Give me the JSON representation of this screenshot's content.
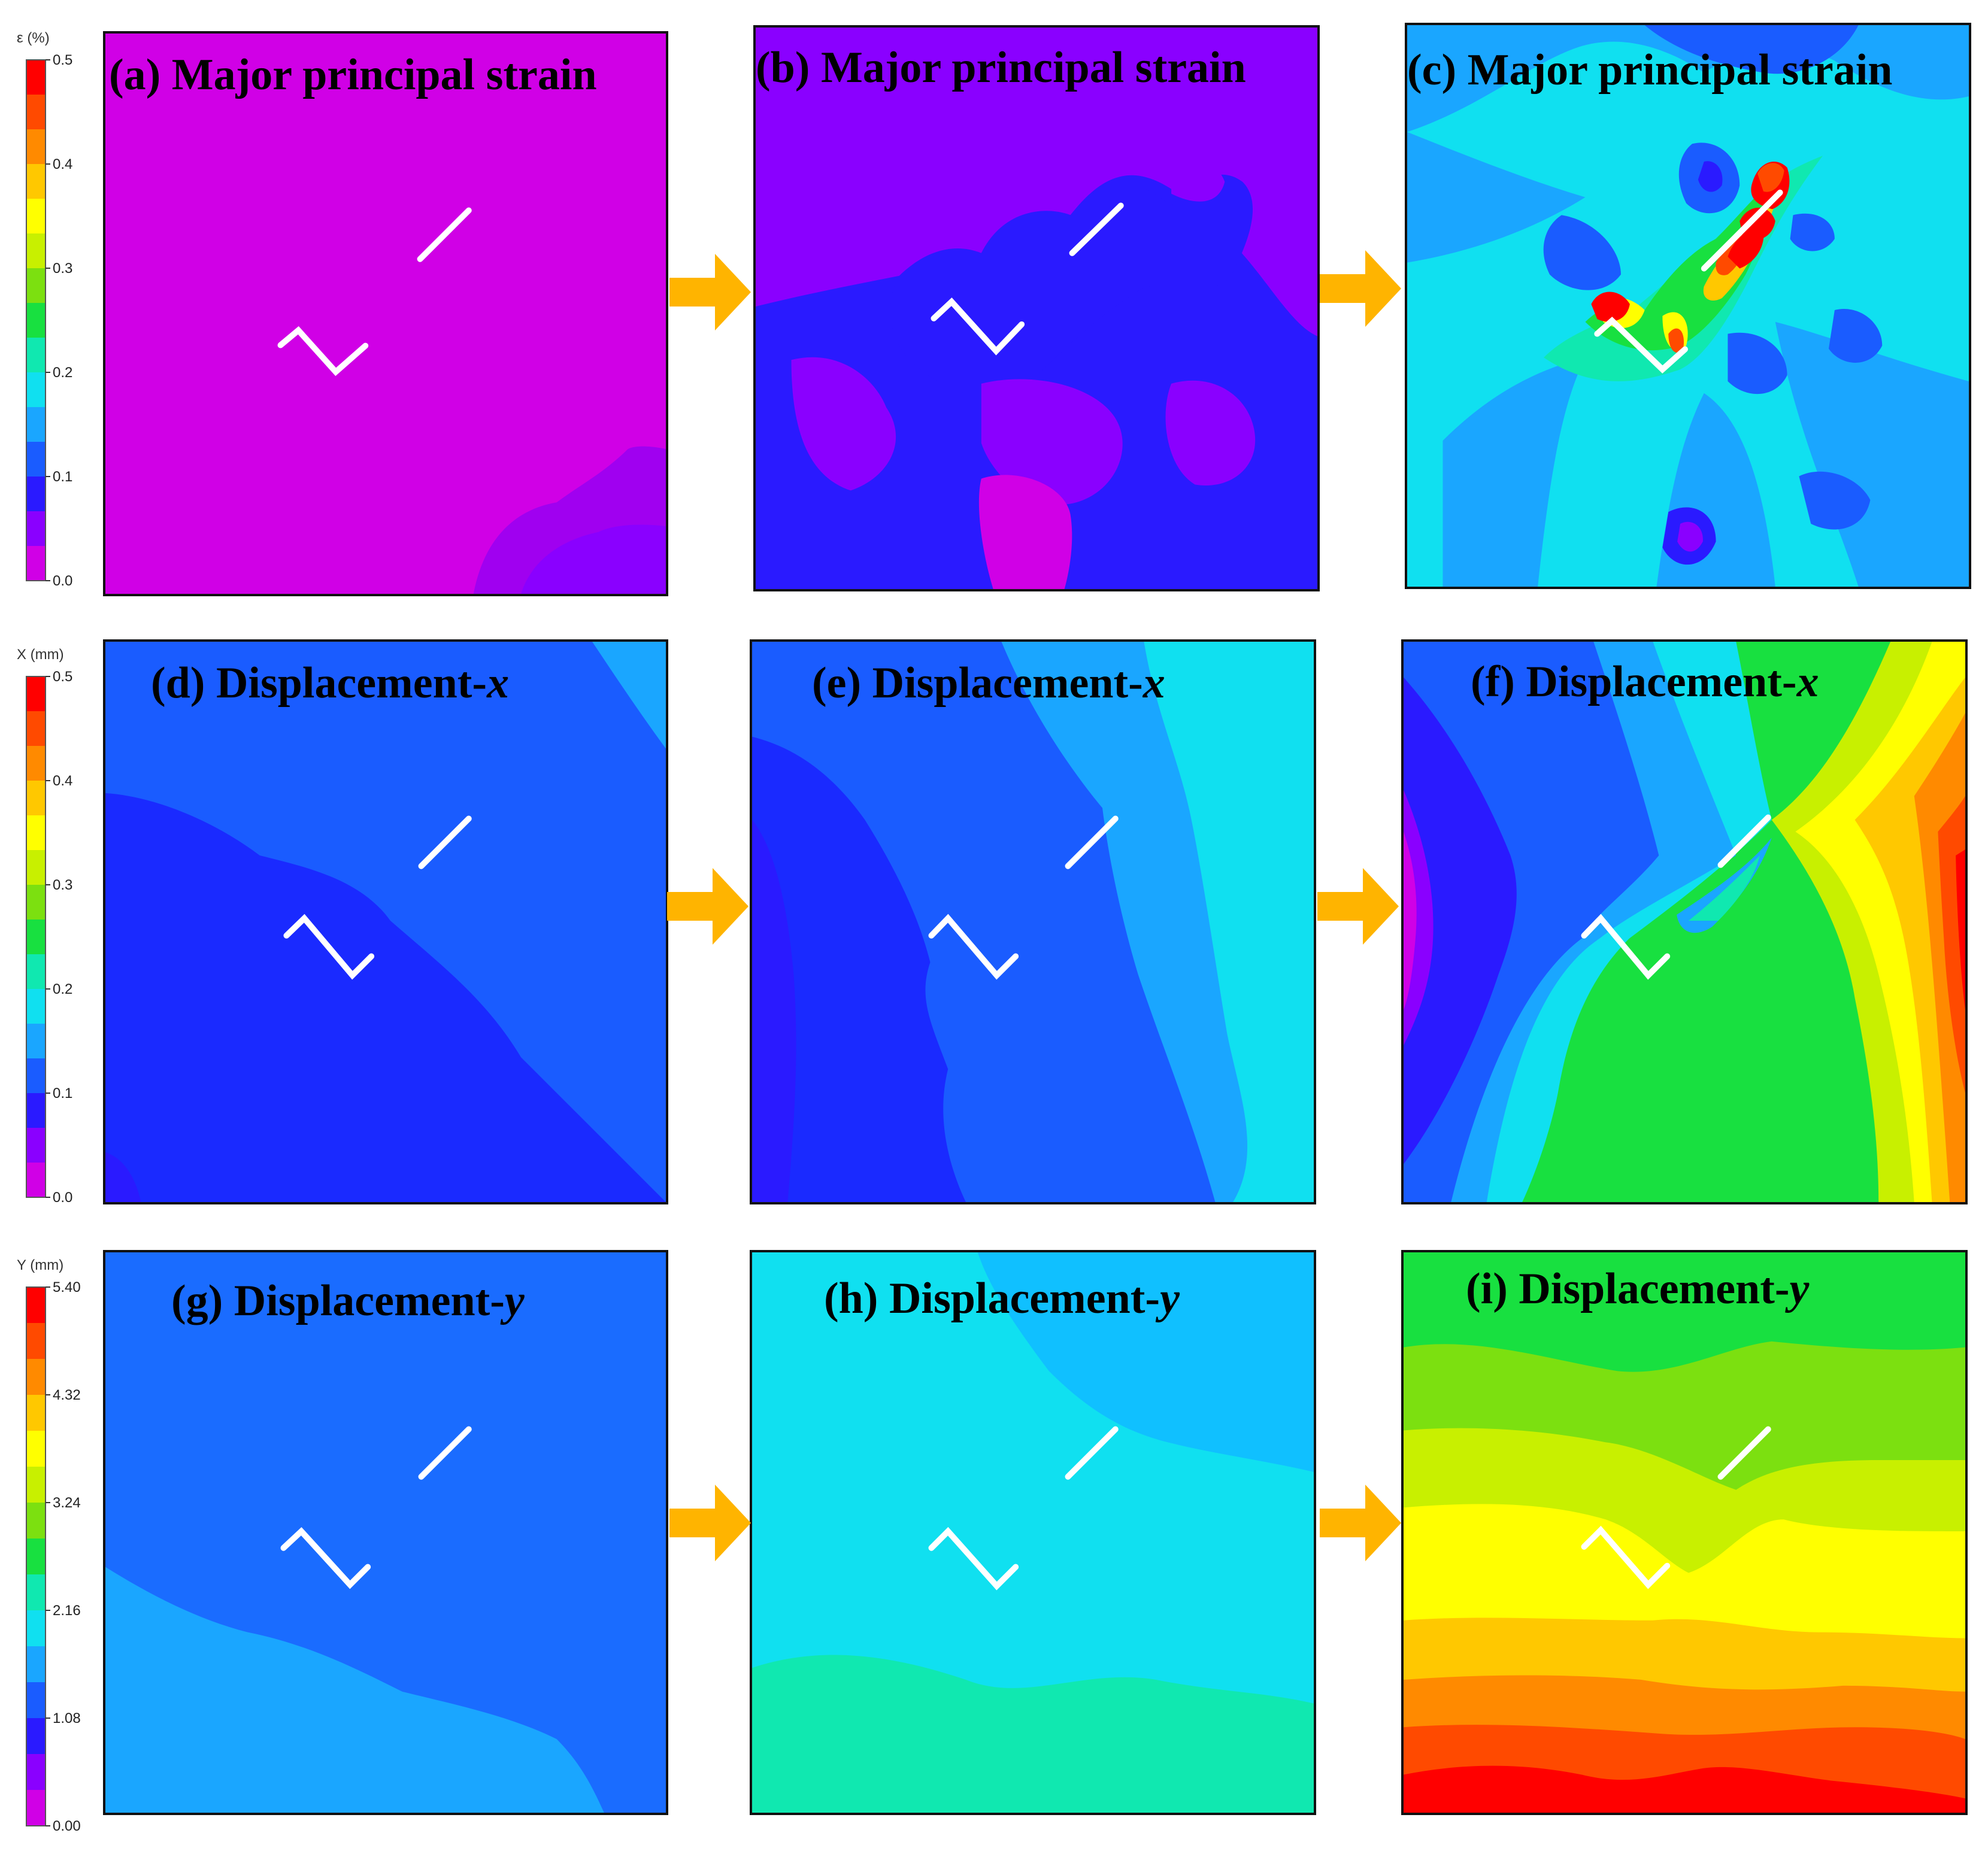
{
  "figure": {
    "panels": [
      {
        "id": "a",
        "label": "(a) Major principal strain",
        "prefix": "(a) Major principal strain",
        "suffix": ""
      },
      {
        "id": "b",
        "label": "(b) Major principal strain",
        "prefix": "(b) Major principal strain",
        "suffix": ""
      },
      {
        "id": "c",
        "label": "(c) Major principal strain",
        "prefix": "(c) Major principal strain",
        "suffix": ""
      },
      {
        "id": "d",
        "label": "(d) Displacement-x",
        "prefix": "(d) Displacement-",
        "suffix": "x"
      },
      {
        "id": "e",
        "label": "(e) Displacement-x",
        "prefix": "(e) Displacement-",
        "suffix": "x"
      },
      {
        "id": "f",
        "label": "(f) Displacement-x",
        "prefix": "(f) Displacement-",
        "suffix": "x"
      },
      {
        "id": "g",
        "label": "(g) Displacement-y",
        "prefix": "(g) Displacement-",
        "suffix": "y"
      },
      {
        "id": "h",
        "label": "(h) Displacement-y",
        "prefix": "(h) Displacement-",
        "suffix": "y"
      },
      {
        "id": "i",
        "label": "(i) Displacement-y",
        "prefix": "(i) Displacement-",
        "suffix": "y"
      }
    ],
    "colorbars": [
      {
        "title": "ε (%)",
        "ticks": [
          "0.5",
          "0.4",
          "0.3",
          "0.2",
          "0.1",
          "0.0"
        ]
      },
      {
        "title": "X (mm)",
        "ticks": [
          "0.5",
          "0.4",
          "0.3",
          "0.2",
          "0.1",
          "0.0"
        ]
      },
      {
        "title": "Y (mm)",
        "ticks": [
          "5.40",
          "4.32",
          "3.24",
          "2.16",
          "1.08",
          "0.00"
        ]
      }
    ],
    "colormap": [
      "#d000e6",
      "#8a00ff",
      "#2a1aff",
      "#1a5cff",
      "#1aa6ff",
      "#10e0f0",
      "#10e8b0",
      "#18e040",
      "#7ce010",
      "#c8f000",
      "#ffff00",
      "#ffc800",
      "#ff8a00",
      "#ff4a00",
      "#ff0000"
    ],
    "colors": {
      "arrow": "#ffb400",
      "crack": "#ffffff",
      "frame": "#111111"
    }
  }
}
